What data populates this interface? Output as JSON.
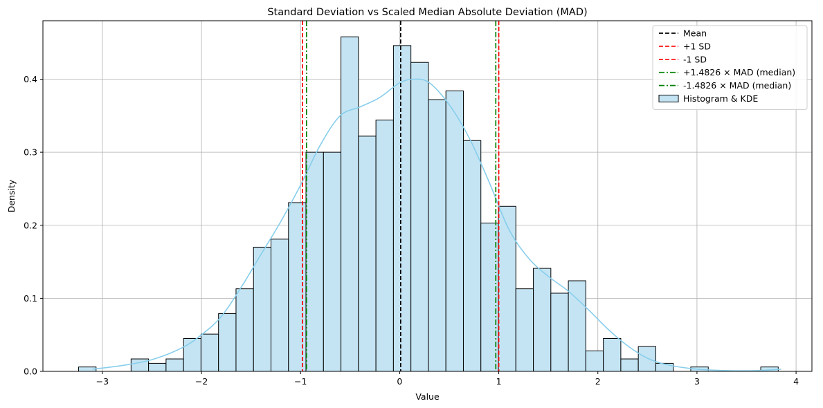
{
  "chart_data": {
    "type": "bar",
    "title": "Standard Deviation vs Scaled Median Absolute Deviation (MAD)",
    "xlabel": "Value",
    "ylabel": "Density",
    "xlim": [
      -3.6,
      4.16
    ],
    "ylim": [
      0,
      0.48
    ],
    "xticks": [
      -3,
      -2,
      -1,
      0,
      1,
      2,
      3,
      4
    ],
    "xtick_labels": [
      "−3",
      "−2",
      "−1",
      "0",
      "1",
      "2",
      "3",
      "4"
    ],
    "yticks": [
      0.0,
      0.1,
      0.2,
      0.3,
      0.4
    ],
    "ytick_labels": [
      "0.0",
      "0.1",
      "0.2",
      "0.3",
      "0.4"
    ],
    "grid": true,
    "legend_position": "upper right",
    "histogram": {
      "name": "Histogram & KDE",
      "bin_start": -3.24,
      "bin_width": 0.1765,
      "densities": [
        0.006,
        0.0,
        0.0,
        0.017,
        0.011,
        0.017,
        0.045,
        0.051,
        0.079,
        0.113,
        0.17,
        0.181,
        0.231,
        0.3,
        0.3,
        0.458,
        0.322,
        0.344,
        0.446,
        0.423,
        0.372,
        0.384,
        0.316,
        0.203,
        0.226,
        0.113,
        0.141,
        0.107,
        0.124,
        0.028,
        0.045,
        0.017,
        0.034,
        0.011,
        0.0,
        0.006,
        0.0,
        0.0,
        0.0,
        0.006
      ],
      "fill": "#c4e4f3",
      "edge": "#000000"
    },
    "kde": {
      "x": [
        -3.1,
        -2.8,
        -2.5,
        -2.2,
        -2.0,
        -1.8,
        -1.6,
        -1.4,
        -1.2,
        -1.0,
        -0.8,
        -0.6,
        -0.4,
        -0.2,
        0.0,
        0.15,
        0.3,
        0.5,
        0.7,
        0.9,
        1.1,
        1.3,
        1.5,
        1.7,
        1.9,
        2.1,
        2.3,
        2.5,
        2.7,
        3.0,
        3.3,
        3.6,
        3.85
      ],
      "y": [
        0.003,
        0.008,
        0.016,
        0.032,
        0.05,
        0.075,
        0.115,
        0.16,
        0.205,
        0.255,
        0.31,
        0.35,
        0.362,
        0.375,
        0.395,
        0.4,
        0.395,
        0.365,
        0.32,
        0.26,
        0.195,
        0.155,
        0.13,
        0.11,
        0.085,
        0.058,
        0.035,
        0.018,
        0.009,
        0.003,
        0.001,
        0.001,
        0.003
      ],
      "color": "#87ceeb"
    },
    "lines": [
      {
        "name": "Mean",
        "x": 0.01,
        "color": "#000000",
        "style": "dashed"
      },
      {
        "name": "+1 SD",
        "x": 1.0,
        "color": "#ff0000",
        "style": "dashed"
      },
      {
        "name": "-1 SD",
        "x": -0.98,
        "color": "#ff0000",
        "style": "dashed"
      },
      {
        "name": "+1.4826 × MAD (median)",
        "x": 0.97,
        "color": "#008000",
        "style": "dashdot"
      },
      {
        "name": "-1.4826 × MAD (median)",
        "x": -0.94,
        "color": "#008000",
        "style": "dashdot"
      }
    ]
  }
}
